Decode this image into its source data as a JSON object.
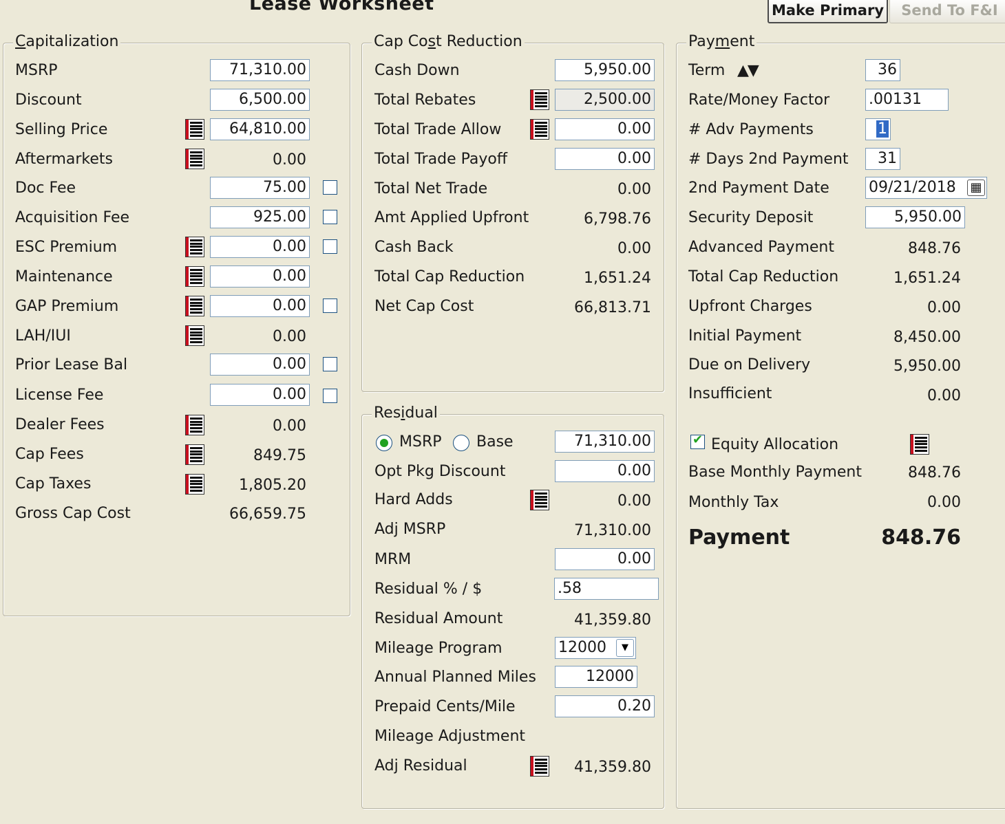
{
  "header": {
    "title": "Lease Worksheet",
    "make_primary": "Make Primary",
    "send_to_fi": "Send To F&I"
  },
  "capitalization": {
    "legend_prefix": "C",
    "legend_rest": "apitalization",
    "msrp_label": "MSRP",
    "msrp": "71,310.00",
    "discount_label": "Discount",
    "discount": "6,500.00",
    "selling_price_label": "Selling Price",
    "selling_price": "64,810.00",
    "aftermarkets_label": "Aftermarkets",
    "aftermarkets": "0.00",
    "doc_fee_label": "Doc Fee",
    "doc_fee": "75.00",
    "acquisition_fee_label": "Acquisition Fee",
    "acquisition_fee": "925.00",
    "esc_premium_label": "ESC Premium",
    "esc_premium": "0.00",
    "maintenance_label": "Maintenance",
    "maintenance": "0.00",
    "gap_premium_label": "GAP Premium",
    "gap_premium": "0.00",
    "lah_iui_label": "LAH/IUI",
    "lah_iui": "0.00",
    "prior_lease_bal_label": "Prior Lease Bal",
    "prior_lease_bal": "0.00",
    "license_fee_label": "License Fee",
    "license_fee": "0.00",
    "dealer_fees_label": "Dealer Fees",
    "dealer_fees": "0.00",
    "cap_fees_label": "Cap Fees",
    "cap_fees": "849.75",
    "cap_taxes_label": "Cap Taxes",
    "cap_taxes": "1,805.20",
    "gross_cap_cost_label": "Gross Cap Cost",
    "gross_cap_cost": "66,659.75"
  },
  "cap_cost_reduction": {
    "legend_a": "Cap Co",
    "legend_u": "s",
    "legend_b": "t Reduction",
    "cash_down_label": "Cash Down",
    "cash_down": "5,950.00",
    "total_rebates_label": "Total Rebates",
    "total_rebates": "2,500.00",
    "total_trade_allow_label": "Total Trade Allow",
    "total_trade_allow": "0.00",
    "total_trade_payoff_label": "Total Trade Payoff",
    "total_trade_payoff": "0.00",
    "total_net_trade_label": "Total Net Trade",
    "total_net_trade": "0.00",
    "amt_applied_upfront_label": "Amt Applied Upfront",
    "amt_applied_upfront": "6,798.76",
    "cash_back_label": "Cash Back",
    "cash_back": "0.00",
    "total_cap_reduction_label": "Total Cap Reduction",
    "total_cap_reduction": "1,651.24",
    "net_cap_cost_label": "Net Cap Cost",
    "net_cap_cost": "66,813.71"
  },
  "residual": {
    "legend_a": "Res",
    "legend_u": "i",
    "legend_b": "dual",
    "msrp_radio_label": "MSRP",
    "base_radio_label": "Base",
    "basis_value": "71,310.00",
    "opt_pkg_discount_label": "Opt Pkg Discount",
    "opt_pkg_discount": "0.00",
    "hard_adds_label": "Hard Adds",
    "hard_adds": "0.00",
    "adj_msrp_label": "Adj MSRP",
    "adj_msrp": "71,310.00",
    "mrm_label": "MRM",
    "mrm": "0.00",
    "residual_pct_label": "Residual % / $",
    "residual_pct": ".58",
    "residual_amount_label": "Residual Amount",
    "residual_amount": "41,359.80",
    "mileage_program_label": "Mileage Program",
    "mileage_program": "12000",
    "annual_planned_miles_label": "Annual Planned Miles",
    "annual_planned_miles": "12000",
    "prepaid_cents_mile_label": "Prepaid Cents/Mile",
    "prepaid_cents_mile": "0.20",
    "mileage_adjustment_label": "Mileage Adjustment",
    "adj_residual_label": "Adj Residual",
    "adj_residual": "41,359.80"
  },
  "payment": {
    "legend_a": "Pay",
    "legend_u": "m",
    "legend_b": "ent",
    "term_label": "Term",
    "term_arrows": "▲▼",
    "term": "36",
    "rate_label": "Rate/Money Factor",
    "rate": ".00131",
    "adv_payments_label": "# Adv Payments",
    "adv_payments": "1",
    "days_2nd_label": "# Days 2nd Payment",
    "days_2nd": "31",
    "date_2nd_label": "2nd Payment Date",
    "date_2nd": "09/21/2018",
    "security_deposit_label": "Security Deposit",
    "security_deposit": "5,950.00",
    "advanced_payment_label": "Advanced Payment",
    "advanced_payment": "848.76",
    "total_cap_reduction_label": "Total Cap Reduction",
    "total_cap_reduction": "1,651.24",
    "upfront_charges_label": "Upfront Charges",
    "upfront_charges": "0.00",
    "initial_payment_label": "Initial Payment",
    "initial_payment": "8,450.00",
    "due_on_delivery_label": "Due on Delivery",
    "due_on_delivery": "5,950.00",
    "insufficient_label": "Insufficient",
    "insufficient": "0.00",
    "equity_allocation_label": "Equity Allocation",
    "base_monthly_label": "Base Monthly Payment",
    "base_monthly": "848.76",
    "monthly_tax_label": "Monthly Tax",
    "monthly_tax": "0.00",
    "payment_label": "Payment",
    "payment": "848.76"
  },
  "icons": {
    "list_icon": "list-detail-icon",
    "calendar_icon": "calendar-icon",
    "dropdown_icon": "chevron-down-icon"
  }
}
